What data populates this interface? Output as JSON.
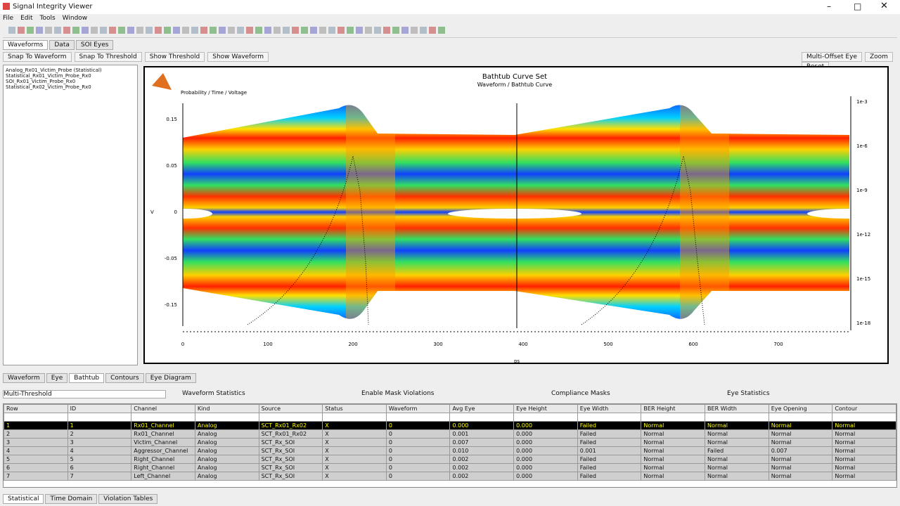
{
  "window": {
    "title": "Signal Integrity Viewer"
  },
  "menu": [
    "File",
    "Edit",
    "Tools",
    "Window"
  ],
  "tabs": [
    "Waveforms",
    "Data",
    "SOI Eyes"
  ],
  "options": [
    "Snap To Waveform",
    "Snap To Threshold",
    "Show Threshold",
    "Show Waveform"
  ],
  "right_options": [
    "Multi-Offset Eye",
    "Zoom",
    "Reset"
  ],
  "left_list": [
    "Analog_Rx01_Victim_Probe (Statistical)",
    "Statistical_Rx01_Victim_Probe_Rx0",
    "SOI_Rx01_Victim_Probe_Rx0",
    "Statistical_Rx02_Victim_Probe_Rx0"
  ],
  "plot": {
    "title": "Bathtub Curve Set",
    "subtitle": "Waveform / Bathtub Curve",
    "legend": "Probability / Time / Voltage",
    "yticks": [
      "0.15",
      "0.05",
      "0",
      "-0.05",
      "-0.15"
    ],
    "y2ticks": [
      "1e-3",
      "1e-6",
      "1e-9",
      "1e-12",
      "1e-15",
      "1e-18"
    ],
    "xticks": [
      "0",
      "100",
      "200",
      "300",
      "400",
      "500",
      "600",
      "700"
    ],
    "xlabel": "ps",
    "ylabel": "V"
  },
  "lower_tabs": [
    "Waveform",
    "Eye",
    "Bathtub",
    "Contours",
    "Eye Diagram"
  ],
  "filter": {
    "select": "Multi-Threshold",
    "label1": "Waveform Statistics",
    "check1": "Enable Mask Violations",
    "label2": "Compliance Masks",
    "label3": "Eye Statistics"
  },
  "table": {
    "columns": [
      "Row",
      "ID",
      "Channel",
      "Kind",
      "Source",
      "Status",
      "Waveform",
      "Avg Eye",
      "Eye Height",
      "Eye Width",
      "BER Height",
      "BER Width",
      "Eye Opening",
      "Contour"
    ],
    "rows": [
      [
        "1",
        "1",
        "Rx01_Channel",
        "Analog",
        "SCT_Rx01_Rx02",
        "X",
        "0",
        "0.000",
        "0.000",
        "Failed",
        "Normal",
        "Normal",
        "Normal",
        "Normal"
      ],
      [
        "2",
        "2",
        "Rx01_Channel",
        "Analog",
        "SCT_Rx01_Rx02",
        "X",
        "0",
        "0.001",
        "0.000",
        "Failed",
        "Normal",
        "Normal",
        "Normal",
        "Normal"
      ],
      [
        "3",
        "3",
        "Victim_Channel",
        "Analog",
        "SCT_Rx_SOI",
        "X",
        "0",
        "0.007",
        "0.000",
        "Failed",
        "Normal",
        "Normal",
        "Normal",
        "Normal"
      ],
      [
        "4",
        "4",
        "Aggressor_Channel",
        "Analog",
        "SCT_Rx_SOI",
        "X",
        "0",
        "0.010",
        "0.000",
        "0.001",
        "Normal",
        "Failed",
        "0.007",
        "Normal"
      ],
      [
        "5",
        "5",
        "Right_Channel",
        "Analog",
        "SCT_Rx_SOI",
        "X",
        "0",
        "0.002",
        "0.000",
        "Failed",
        "Normal",
        "Normal",
        "Normal",
        "Normal"
      ],
      [
        "6",
        "6",
        "Right_Channel",
        "Analog",
        "SCT_Rx_SOI",
        "X",
        "0",
        "0.002",
        "0.000",
        "Failed",
        "Normal",
        "Normal",
        "Normal",
        "Normal"
      ],
      [
        "7",
        "7",
        "Left_Channel",
        "Analog",
        "SCT_Rx_SOI",
        "X",
        "0",
        "0.002",
        "0.000",
        "Failed",
        "Normal",
        "Normal",
        "Normal",
        "Normal"
      ]
    ]
  },
  "bottom_tabs": [
    "Statistical",
    "Time Domain",
    "Violation Tables"
  ]
}
